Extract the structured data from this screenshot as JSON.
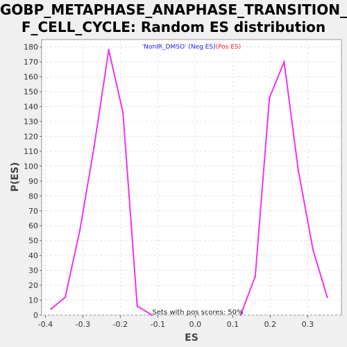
{
  "title_lines": [
    "GOBP_METAPHASE_ANAPHASE_TRANSITION_O",
    "F_CELL_CYCLE: Random ES distribution"
  ],
  "chart_data": {
    "type": "line",
    "title": "GOBP_METAPHASE_ANAPHASE_TRANSITION_OF_CELL_CYCLE: Random ES distribution",
    "xlabel": "ES",
    "ylabel": "P(ES)",
    "xlim": [
      -0.41,
      0.39
    ],
    "ylim": [
      0,
      185
    ],
    "xticks": [
      -0.4,
      -0.3,
      -0.2,
      -0.1,
      0.0,
      0.1,
      0.2,
      0.3
    ],
    "xtick_labels": [
      "-0.4",
      "-0.3",
      "-0.2",
      "-0.1",
      "0.0",
      "0.1",
      "0.2",
      "0.3"
    ],
    "yticks": [
      0,
      10,
      20,
      30,
      40,
      50,
      60,
      70,
      80,
      90,
      100,
      110,
      120,
      130,
      140,
      150,
      160,
      170,
      180
    ],
    "grid": true,
    "line_color": "#ee33ee",
    "series": [
      {
        "x": [
          -0.385,
          -0.347,
          -0.308,
          -0.27,
          -0.231,
          -0.193,
          -0.155,
          -0.116
        ],
        "y": [
          4,
          12,
          57,
          113,
          178,
          136,
          6,
          0
        ]
      },
      {
        "x": [
          0.121,
          0.16,
          0.198,
          0.237,
          0.275,
          0.314,
          0.352
        ],
        "y": [
          0,
          26,
          146,
          170,
          97,
          44,
          12
        ]
      }
    ],
    "legend": {
      "neg_label": "'NonIR_DMSO' (Neg ES)",
      "pos_label": "(Pos ES)",
      "neg_color": "#2222ee",
      "pos_color": "#ee2222",
      "position": "top-center"
    },
    "annotation": "Sets with pos scores: 50%"
  }
}
